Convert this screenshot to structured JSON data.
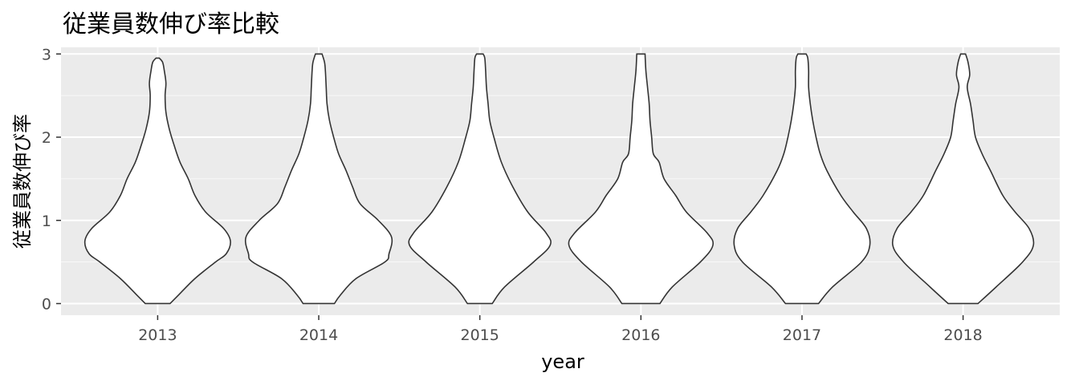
{
  "chart_data": {
    "type": "violin",
    "title": "従業員数伸び率比較",
    "xlabel": "year",
    "ylabel": "従業員数伸び率",
    "categories": [
      "2013",
      "2014",
      "2015",
      "2016",
      "2017",
      "2018"
    ],
    "ylim": [
      -0.14,
      3.08
    ],
    "yticks": [
      0,
      1,
      2,
      3
    ],
    "y_tick_labels": [
      "0",
      "1",
      "2",
      "3"
    ],
    "grid": true,
    "colors": {
      "panel_background": "#ebebeb",
      "grid": "#ffffff",
      "violin_fill": "#ffffff",
      "violin_outline": "#333333"
    },
    "violins": [
      {
        "year": "2013",
        "y_min": 0,
        "y_max": 2.95,
        "profile": [
          [
            0,
            0.15
          ],
          [
            0.1,
            0.25
          ],
          [
            0.3,
            0.45
          ],
          [
            0.5,
            0.7
          ],
          [
            0.6,
            0.83
          ],
          [
            0.75,
            0.88
          ],
          [
            0.9,
            0.8
          ],
          [
            1.1,
            0.58
          ],
          [
            1.3,
            0.45
          ],
          [
            1.5,
            0.37
          ],
          [
            1.7,
            0.27
          ],
          [
            1.9,
            0.2
          ],
          [
            2.1,
            0.14
          ],
          [
            2.3,
            0.1
          ],
          [
            2.5,
            0.09
          ],
          [
            2.65,
            0.1
          ],
          [
            2.8,
            0.08
          ],
          [
            2.9,
            0.06
          ],
          [
            2.95,
            0.02
          ]
        ]
      },
      {
        "year": "2014",
        "y_min": 0,
        "y_max": 3.0,
        "profile": [
          [
            0,
            0.19
          ],
          [
            0.1,
            0.26
          ],
          [
            0.3,
            0.45
          ],
          [
            0.5,
            0.8
          ],
          [
            0.6,
            0.85
          ],
          [
            0.8,
            0.88
          ],
          [
            1.0,
            0.72
          ],
          [
            1.2,
            0.5
          ],
          [
            1.4,
            0.41
          ],
          [
            1.6,
            0.33
          ],
          [
            1.8,
            0.24
          ],
          [
            2.0,
            0.18
          ],
          [
            2.2,
            0.13
          ],
          [
            2.4,
            0.1
          ],
          [
            2.6,
            0.09
          ],
          [
            2.8,
            0.08
          ],
          [
            2.9,
            0.07
          ],
          [
            3.0,
            0.04
          ]
        ]
      },
      {
        "year": "2015",
        "y_min": 0,
        "y_max": 3.0,
        "profile": [
          [
            0,
            0.15
          ],
          [
            0.2,
            0.3
          ],
          [
            0.5,
            0.65
          ],
          [
            0.7,
            0.85
          ],
          [
            0.85,
            0.8
          ],
          [
            1.1,
            0.58
          ],
          [
            1.4,
            0.4
          ],
          [
            1.7,
            0.26
          ],
          [
            2.0,
            0.17
          ],
          [
            2.2,
            0.12
          ],
          [
            2.4,
            0.1
          ],
          [
            2.6,
            0.08
          ],
          [
            2.8,
            0.07
          ],
          [
            2.95,
            0.06
          ],
          [
            3.0,
            0.04
          ]
        ]
      },
      {
        "year": "2016",
        "y_min": 0,
        "y_max": 3.0,
        "profile": [
          [
            0,
            0.23
          ],
          [
            0.2,
            0.38
          ],
          [
            0.5,
            0.72
          ],
          [
            0.7,
            0.87
          ],
          [
            0.85,
            0.8
          ],
          [
            1.1,
            0.55
          ],
          [
            1.3,
            0.42
          ],
          [
            1.5,
            0.28
          ],
          [
            1.7,
            0.22
          ],
          [
            1.8,
            0.15
          ],
          [
            2.0,
            0.13
          ],
          [
            2.2,
            0.11
          ],
          [
            2.4,
            0.1
          ],
          [
            2.6,
            0.08
          ],
          [
            2.8,
            0.06
          ],
          [
            3.0,
            0.05
          ]
        ]
      },
      {
        "year": "2017",
        "y_min": 0,
        "y_max": 3.0,
        "profile": [
          [
            0,
            0.2
          ],
          [
            0.2,
            0.37
          ],
          [
            0.5,
            0.72
          ],
          [
            0.7,
            0.82
          ],
          [
            0.9,
            0.78
          ],
          [
            1.1,
            0.62
          ],
          [
            1.3,
            0.47
          ],
          [
            1.6,
            0.3
          ],
          [
            1.8,
            0.22
          ],
          [
            2.0,
            0.17
          ],
          [
            2.2,
            0.13
          ],
          [
            2.4,
            0.1
          ],
          [
            2.6,
            0.08
          ],
          [
            2.8,
            0.08
          ],
          [
            2.95,
            0.07
          ],
          [
            3.0,
            0.05
          ]
        ]
      },
      {
        "year": "2018",
        "y_min": 0,
        "y_max": 3.0,
        "profile": [
          [
            0,
            0.18
          ],
          [
            0.2,
            0.4
          ],
          [
            0.5,
            0.72
          ],
          [
            0.7,
            0.85
          ],
          [
            0.9,
            0.8
          ],
          [
            1.1,
            0.63
          ],
          [
            1.3,
            0.48
          ],
          [
            1.6,
            0.33
          ],
          [
            1.8,
            0.23
          ],
          [
            2.0,
            0.15
          ],
          [
            2.2,
            0.12
          ],
          [
            2.4,
            0.09
          ],
          [
            2.6,
            0.05
          ],
          [
            2.75,
            0.08
          ],
          [
            2.9,
            0.06
          ],
          [
            3.0,
            0.03
          ]
        ]
      }
    ]
  }
}
